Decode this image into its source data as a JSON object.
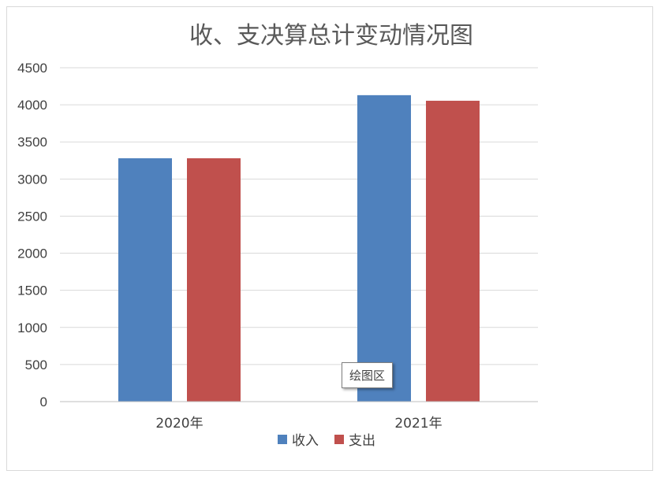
{
  "chart_data": {
    "type": "bar",
    "title": "收、支决算总计变动情况图",
    "categories": [
      "2020年",
      "2021年"
    ],
    "series": [
      {
        "name": "收入",
        "color": "#4f81bd",
        "values": [
          3280,
          4130
        ]
      },
      {
        "name": "支出",
        "color": "#c0504d",
        "values": [
          3280,
          4055
        ]
      }
    ],
    "ylim": [
      0,
      4500
    ],
    "yticks": [
      "0",
      "500",
      "1000",
      "1500",
      "2000",
      "2500",
      "3000",
      "3500",
      "4000",
      "4500"
    ],
    "grid": true,
    "legend": "bottom"
  },
  "tooltip": {
    "label": "绘图区"
  }
}
